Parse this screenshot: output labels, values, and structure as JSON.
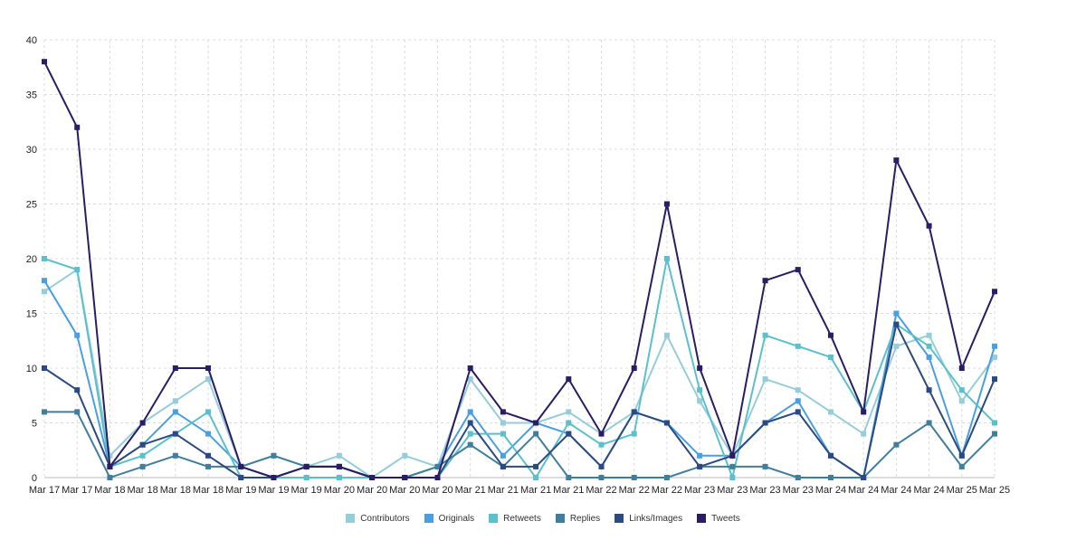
{
  "chart_data": {
    "type": "line",
    "x": [
      "Mar 17",
      "Mar 17",
      "Mar 18",
      "Mar 18",
      "Mar 18",
      "Mar 18",
      "Mar 19",
      "Mar 19",
      "Mar 19",
      "Mar 20",
      "Mar 20",
      "Mar 20",
      "Mar 20",
      "Mar 21",
      "Mar 21",
      "Mar 21",
      "Mar 21",
      "Mar 22",
      "Mar 22",
      "Mar 22",
      "Mar 23",
      "Mar 23",
      "Mar 23",
      "Mar 23",
      "Mar 24",
      "Mar 24",
      "Mar 24",
      "Mar 24",
      "Mar 25",
      "Mar 25"
    ],
    "ylim": [
      0,
      40
    ],
    "yticks": [
      0,
      5,
      10,
      15,
      20,
      25,
      30,
      35,
      40
    ],
    "grid": true,
    "legend_position": "bottom",
    "series": [
      {
        "name": "Contributors",
        "color": "#96cdd9",
        "values": [
          17,
          19,
          2,
          5,
          7,
          9,
          1,
          2,
          1,
          2,
          0,
          2,
          1,
          9,
          5,
          5,
          6,
          4,
          6,
          13,
          7,
          2,
          9,
          8,
          6,
          4,
          12,
          13,
          7,
          11
        ]
      },
      {
        "name": "Originals",
        "color": "#4a9fe0",
        "values": [
          18,
          13,
          1,
          3,
          6,
          4,
          1,
          0,
          0,
          0,
          0,
          0,
          1,
          6,
          2,
          5,
          4,
          1,
          6,
          5,
          2,
          2,
          5,
          7,
          2,
          0,
          15,
          11,
          2,
          12
        ]
      },
      {
        "name": "Retweets",
        "color": "#5bc0cc",
        "values": [
          20,
          19,
          1,
          2,
          4,
          6,
          0,
          0,
          0,
          0,
          0,
          0,
          0,
          4,
          4,
          0,
          5,
          3,
          4,
          20,
          8,
          0,
          13,
          12,
          11,
          6,
          14,
          12,
          8,
          5
        ]
      },
      {
        "name": "Replies",
        "color": "#3f7f9c",
        "values": [
          6,
          6,
          0,
          1,
          2,
          1,
          1,
          2,
          1,
          1,
          0,
          0,
          1,
          3,
          1,
          4,
          0,
          0,
          0,
          0,
          1,
          1,
          1,
          0,
          0,
          0,
          3,
          5,
          1,
          4
        ]
      },
      {
        "name": "Links/Images",
        "color": "#2b4a82",
        "values": [
          10,
          8,
          1,
          3,
          4,
          2,
          0,
          0,
          1,
          1,
          0,
          0,
          0,
          5,
          1,
          1,
          4,
          1,
          6,
          5,
          1,
          2,
          5,
          6,
          2,
          0,
          14,
          8,
          2,
          9
        ]
      },
      {
        "name": "Tweets",
        "color": "#2a1d63",
        "values": [
          38,
          32,
          1,
          5,
          10,
          10,
          1,
          0,
          1,
          1,
          0,
          0,
          0,
          10,
          6,
          5,
          9,
          4,
          10,
          25,
          10,
          2,
          18,
          19,
          13,
          6,
          29,
          23,
          10,
          17
        ]
      }
    ]
  }
}
